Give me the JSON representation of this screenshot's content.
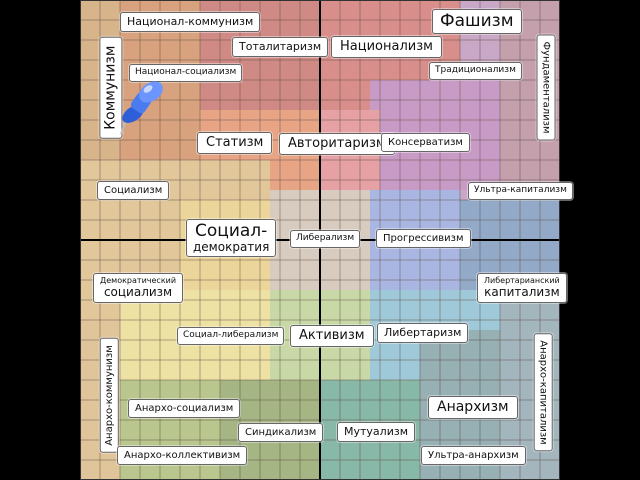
{
  "labels": {
    "national_communism": "Национал-коммунизм",
    "fascism": "Фашизм",
    "totalitarianism": "Тоталитаризм",
    "nationalism": "Национализм",
    "communism": "Коммунизм",
    "fundamentalism": "Фундаментализм",
    "national_socialism": "Национал-социализм",
    "traditionalism": "Традиционализм",
    "statism": "Статизм",
    "authoritarianism": "Авторитаризм",
    "conservatism": "Консерватизм",
    "socialism": "Социализм",
    "ultra_capitalism": "Ультра-капитализм",
    "social_democracy_1": "Социал-",
    "social_democracy_2": "демократия",
    "liberalism": "Либерализм",
    "progressivism": "Прогрессивизм",
    "democratic_socialism_1": "Демократический",
    "democratic_socialism_2": "социализм",
    "libertarian_capitalism_1": "Либертарианский",
    "libertarian_capitalism_2": "капитализм",
    "social_liberalism": "Социал-либерализм",
    "activism": "Активизм",
    "libertarianism": "Либертаризм",
    "anarcho_communism": "Анархо-коммунизм",
    "anarcho_capitalism": "Анархо-капитализм",
    "anarcho_socialism": "Анархо-социализм",
    "anarchism": "Анархизм",
    "syndicalism": "Синдикализм",
    "mutualism": "Мутуализм",
    "anarcho_collectivism": "Анархо-коллективизм",
    "ultra_anarchism": "Ультра-анархизм"
  },
  "colors": {
    "background": "#000000",
    "grid_line": "#5a4a40",
    "axis": "#000000",
    "pin": "#4a7cf0"
  },
  "marker": {
    "icon": "pushpin-icon"
  }
}
